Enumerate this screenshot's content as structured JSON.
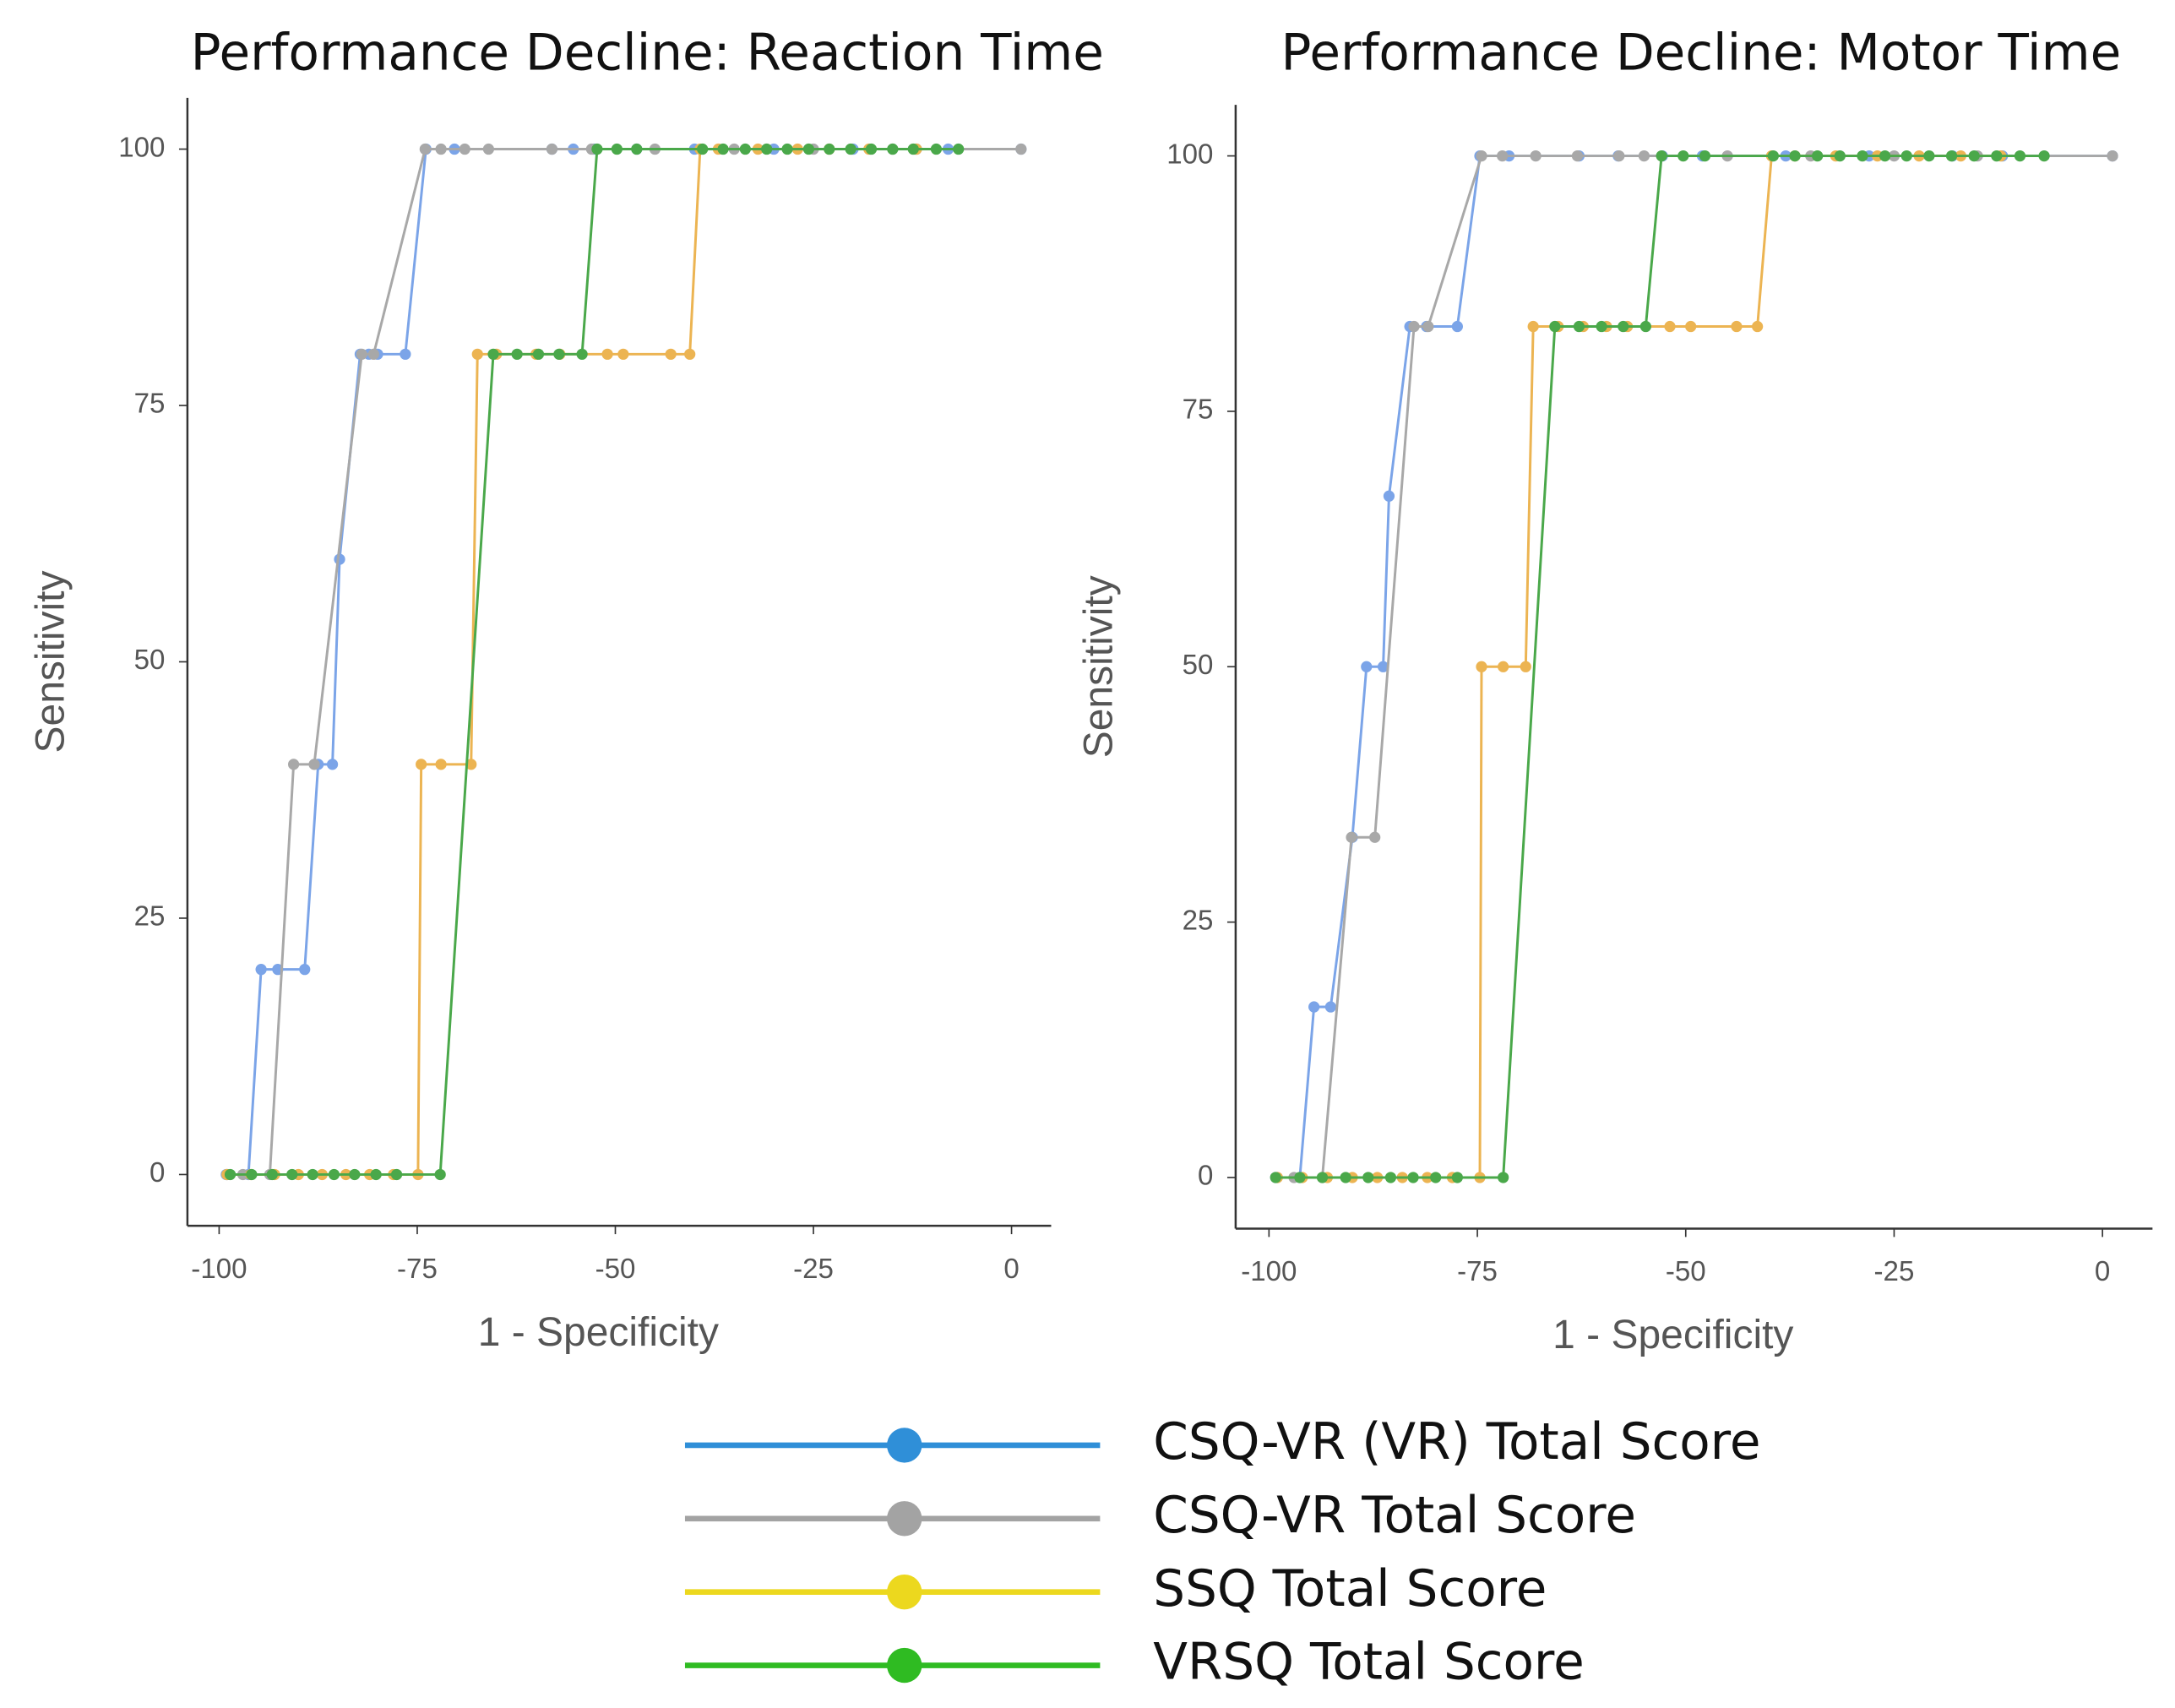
{
  "chart_data": [
    {
      "type": "line",
      "title": "Performance Decline: Reaction Time",
      "xlabel": "1 - Specificity",
      "ylabel": "Sensitivity",
      "xlim": [
        -104,
        5
      ],
      "ylim": [
        -5,
        105
      ],
      "xticks": [
        -100,
        -75,
        -50,
        -25,
        0
      ],
      "yticks": [
        0,
        25,
        50,
        75,
        100
      ],
      "series": [
        {
          "color": "#7ba4e8",
          "x": [
            -99.1,
            -96.3,
            -94.7,
            -92.6,
            -89.2,
            -87.5,
            -85.7,
            -84.8,
            -82.2,
            -81.1,
            -80,
            -76.5,
            -73.9,
            -70.3,
            -58,
            -55.3,
            -52.7,
            -47.3,
            -40,
            -30,
            -20,
            -12,
            -8,
            1.2
          ],
          "values": [
            0,
            0,
            20,
            20,
            20,
            40,
            40,
            60,
            80,
            80,
            80,
            80,
            100,
            100,
            100,
            100,
            100,
            100,
            100,
            100,
            100,
            100,
            100,
            100
          ]
        },
        {
          "color": "#a8a8a8",
          "x": [
            -99,
            -97,
            -93.6,
            -90.6,
            -88,
            -82,
            -80.5,
            -74,
            -72,
            -69,
            -66,
            -58,
            -53,
            -45,
            -35,
            -25,
            -15,
            1.2
          ],
          "values": [
            0,
            0,
            0,
            40,
            40,
            80,
            80,
            100,
            100,
            100,
            100,
            100,
            100,
            100,
            100,
            100,
            100,
            100
          ]
        },
        {
          "color": "#ecb452",
          "x": [
            -99,
            -96,
            -93,
            -90,
            -87,
            -84,
            -81,
            -78,
            -74.9,
            -74.5,
            -72,
            -68.2,
            -67.4,
            -65,
            -60,
            -57,
            -51,
            -49,
            -43,
            -40.6,
            -39.3,
            -37,
            -32,
            -27,
            -23,
            -18,
            -12
          ],
          "values": [
            0,
            0,
            0,
            0,
            0,
            0,
            0,
            0,
            0,
            40,
            40,
            40,
            80,
            80,
            80,
            80,
            80,
            80,
            80,
            80,
            100,
            100,
            100,
            100,
            100,
            100,
            100
          ]
        },
        {
          "color": "#4aa84a",
          "x": [
            -98.6,
            -95.9,
            -93.3,
            -90.8,
            -88.2,
            -85.5,
            -82.9,
            -80.2,
            -77.6,
            -72.1,
            -65.4,
            -62.4,
            -59.7,
            -57.1,
            -54.2,
            -52.3,
            -49.8,
            -47.3,
            -39,
            -36.4,
            -33.6,
            -30.9,
            -28.3,
            -25.6,
            -23,
            -20.3,
            -17.7,
            -15,
            -12.4,
            -9.5,
            -6.7
          ],
          "values": [
            0,
            0,
            0,
            0,
            0,
            0,
            0,
            0,
            0,
            0,
            80,
            80,
            80,
            80,
            80,
            100,
            100,
            100,
            100,
            100,
            100,
            100,
            100,
            100,
            100,
            100,
            100,
            100,
            100,
            100,
            100
          ]
        }
      ]
    },
    {
      "type": "line",
      "title": "Performance Decline: Motor Time",
      "xlabel": "1 - Specificity",
      "ylabel": "Sensitivity",
      "xlim": [
        -104,
        6
      ],
      "ylim": [
        -5,
        105
      ],
      "xticks": [
        -100,
        -75,
        -50,
        -25,
        0
      ],
      "yticks": [
        0,
        25,
        50,
        75,
        100
      ],
      "series": [
        {
          "color": "#7ba4e8",
          "x": [
            -99.2,
            -96.3,
            -94.6,
            -92.6,
            -90,
            -88.3,
            -86.3,
            -85.6,
            -83.1,
            -81.1,
            -77.4,
            -74.7,
            -71.2,
            -62.8,
            -58.1,
            -52.8,
            -48,
            -38,
            -28,
            -18,
            -12,
            1.2
          ],
          "values": [
            0,
            0,
            16.7,
            16.7,
            33.3,
            50,
            50,
            66.7,
            83.3,
            83.3,
            83.3,
            100,
            100,
            100,
            100,
            100,
            100,
            100,
            100,
            100,
            100,
            100
          ]
        },
        {
          "color": "#a8a8a8",
          "x": [
            -99,
            -97,
            -93.6,
            -90.1,
            -87.3,
            -82.6,
            -80.9,
            -74.5,
            -72,
            -68,
            -63,
            -58,
            -55,
            -45,
            -35,
            -25,
            -15,
            1.2
          ],
          "values": [
            0,
            0,
            0,
            33.3,
            33.3,
            83.3,
            83.3,
            100,
            100,
            100,
            100,
            100,
            100,
            100,
            100,
            100,
            100,
            100
          ]
        },
        {
          "color": "#ecb452",
          "x": [
            -99,
            -96,
            -93,
            -90,
            -87,
            -84,
            -81,
            -78,
            -74.7,
            -74.5,
            -71.9,
            -69.2,
            -68.3,
            -65.3,
            -62.3,
            -59.5,
            -57,
            -51.9,
            -49.4,
            -43.9,
            -41.4,
            -39.7,
            -36.9,
            -32,
            -27,
            -22,
            -17,
            -12.2
          ],
          "values": [
            0,
            0,
            0,
            0,
            0,
            0,
            0,
            0,
            0,
            50,
            50,
            50,
            83.3,
            83.3,
            83.3,
            83.3,
            83.3,
            83.3,
            83.3,
            83.3,
            83.3,
            100,
            100,
            100,
            100,
            100,
            100,
            100
          ]
        },
        {
          "color": "#4aa84a",
          "x": [
            -99.2,
            -96.3,
            -93.6,
            -90.8,
            -88.1,
            -85.4,
            -82.7,
            -80,
            -77.4,
            -71.9,
            -65.7,
            -62.8,
            -60.1,
            -57.5,
            -54.8,
            -52.9,
            -50.3,
            -47.7,
            -39.5,
            -36.9,
            -34.2,
            -31.5,
            -28.8,
            -26.1,
            -23.5,
            -20.8,
            -18.1,
            -15.4,
            -12.7,
            -9.9,
            -7
          ],
          "values": [
            0,
            0,
            0,
            0,
            0,
            0,
            0,
            0,
            0,
            0,
            83.3,
            83.3,
            83.3,
            83.3,
            83.3,
            100,
            100,
            100,
            100,
            100,
            100,
            100,
            100,
            100,
            100,
            100,
            100,
            100,
            100,
            100,
            100
          ]
        }
      ]
    }
  ],
  "legend": {
    "entries": [
      {
        "name": "CSQ-VR (VR) Total Score",
        "color": "#2f8fd8"
      },
      {
        "name": "CSQ-VR Total Score",
        "color": "#a3a3a3"
      },
      {
        "name": "SSQ Total Score",
        "color": "#ecd81e"
      },
      {
        "name": "VRSQ Total Score",
        "color": "#2fbb22"
      }
    ]
  }
}
